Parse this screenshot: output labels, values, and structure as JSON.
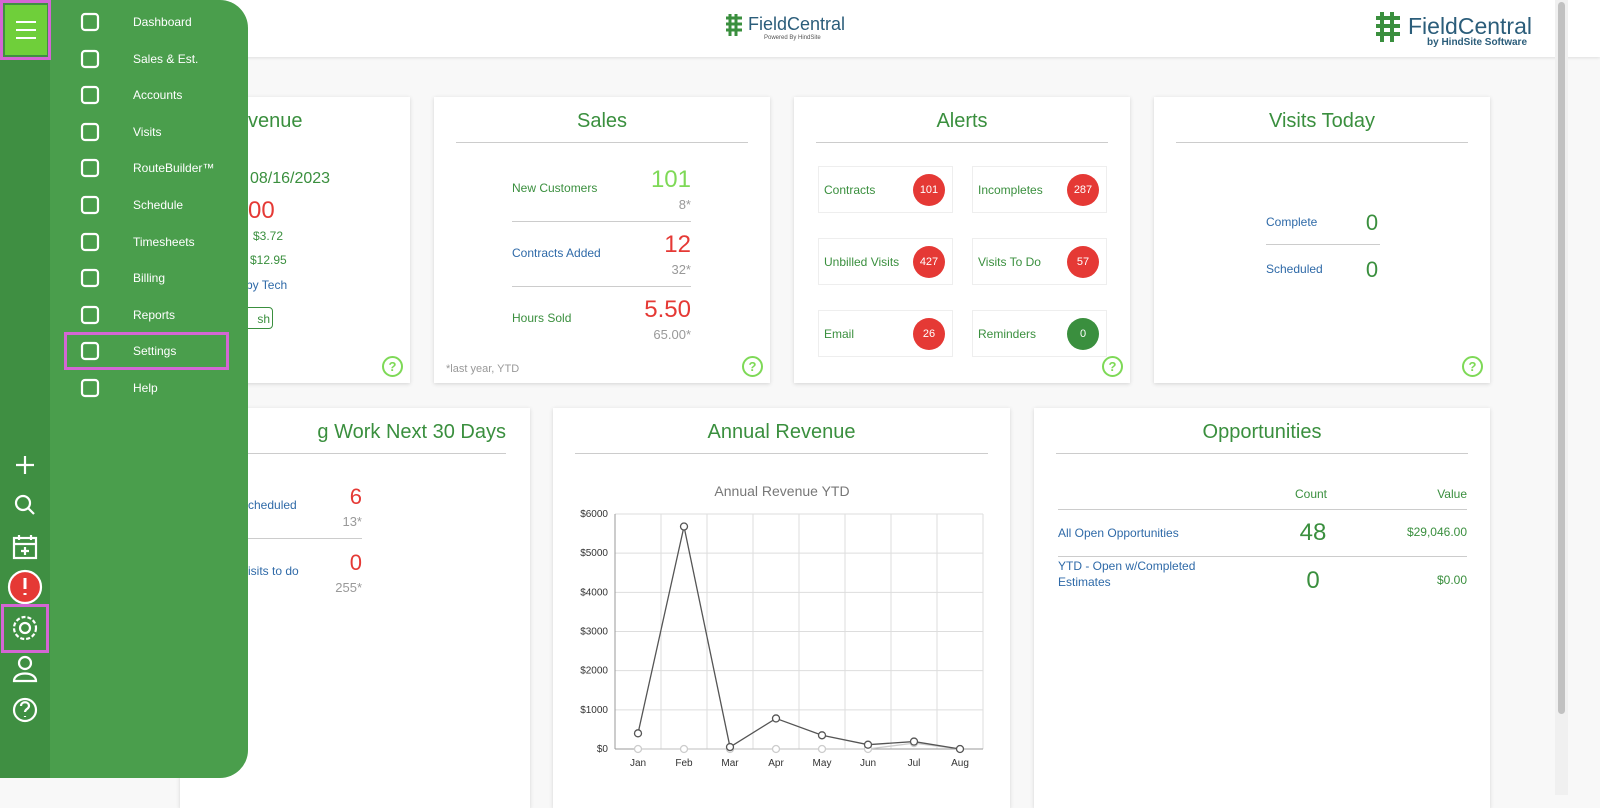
{
  "header": {
    "center_logo": "FieldCentral",
    "center_sub": "Powered By HindSite",
    "right_logo": "FieldCentral",
    "right_sub": "by HindSite Software"
  },
  "nav": {
    "items": [
      "Dashboard",
      "Sales & Est.",
      "Accounts",
      "Visits",
      "RouteBuilder™",
      "Schedule",
      "Timesheets",
      "Billing",
      "Reports",
      "Settings",
      "Help"
    ]
  },
  "revenue_card": {
    "title": "venue",
    "date": "08/16/2023",
    "amount": "00",
    "line1": "$3.72",
    "line2": "$12.95",
    "link": "by Tech",
    "button": "sh"
  },
  "sales": {
    "title": "Sales",
    "rows": [
      {
        "label": "New Customers",
        "value": "101",
        "prior": "8*"
      },
      {
        "label": "Contracts Added",
        "value": "12",
        "prior": "32*"
      },
      {
        "label": "Hours Sold",
        "value": "5.50",
        "prior": "65.00*"
      }
    ],
    "footnote": "*last year, YTD"
  },
  "alerts": {
    "title": "Alerts",
    "items": [
      {
        "label": "Contracts",
        "count": "101",
        "color": "#e53935"
      },
      {
        "label": "Incompletes",
        "count": "287",
        "color": "#e53935"
      },
      {
        "label": "Unbilled Visits",
        "count": "427",
        "color": "#e53935"
      },
      {
        "label": "Visits To Do",
        "count": "57",
        "color": "#e53935"
      },
      {
        "label": "Email",
        "count": "26",
        "color": "#e53935"
      },
      {
        "label": "Reminders",
        "count": "0",
        "color": "#3a8f3e"
      }
    ]
  },
  "visits_today": {
    "title": "Visits Today",
    "rows": [
      {
        "label": "Complete",
        "value": "0"
      },
      {
        "label": "Scheduled",
        "value": "0"
      }
    ]
  },
  "work": {
    "title": "g Work Next 30 Days",
    "rows": [
      {
        "label": "cheduled",
        "value": "6",
        "prior": "13*"
      },
      {
        "label": "isits to do",
        "value": "0",
        "prior": "255*"
      }
    ]
  },
  "annual": {
    "title": "Annual Revenue"
  },
  "opportunities": {
    "title": "Opportunities",
    "headers": [
      "Count",
      "Value"
    ],
    "rows": [
      {
        "label": "All Open Opportunities",
        "count": "48",
        "value": "$29,046.00"
      },
      {
        "label": "YTD - Open w/Completed Estimates",
        "count": "0",
        "value": "$0.00"
      }
    ]
  },
  "chart_data": {
    "type": "line",
    "title": "Annual Revenue YTD",
    "categories": [
      "Jan",
      "Feb",
      "Mar",
      "Apr",
      "May",
      "Jun",
      "Jul",
      "Aug"
    ],
    "series": [
      {
        "color": "#555555",
        "values": [
          400,
          5680,
          50,
          780,
          350,
          110,
          190,
          0
        ]
      },
      {
        "color": "#cccccc",
        "values": [
          0,
          0,
          0,
          0,
          0,
          0,
          150,
          0
        ]
      }
    ],
    "ylim": [
      0,
      6000
    ],
    "yticks": [
      {
        "value": 0,
        "label": "$0"
      },
      {
        "value": 1000,
        "label": "$1000"
      },
      {
        "value": 2000,
        "label": "$2000"
      },
      {
        "value": 3000,
        "label": "$3000"
      },
      {
        "value": 4000,
        "label": "$4000"
      },
      {
        "value": 5000,
        "label": "$5000"
      },
      {
        "value": 6000,
        "label": "$6000"
      }
    ],
    "grid": true
  }
}
